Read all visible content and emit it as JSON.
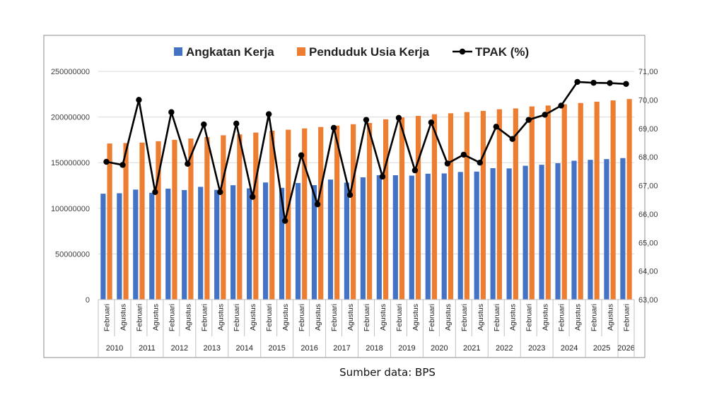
{
  "source_note": "Sumber data: BPS",
  "chart_data": {
    "type": "bar",
    "legend_position": "top",
    "grid": true,
    "categories": [
      "Februari",
      "Agustus",
      "Februari",
      "Agustus",
      "Februari",
      "Agustus",
      "Februari",
      "Agustus",
      "Februari",
      "Agustus",
      "Februari",
      "Agustus",
      "Februari",
      "Agustus",
      "Februari",
      "Agustus",
      "Februari",
      "Agustus",
      "Februari",
      "Agustus",
      "Februari",
      "Agustus",
      "Februari",
      "Agustus",
      "Februari",
      "Agustus",
      "Februari",
      "Agustus",
      "Februari",
      "Agustus",
      "Februari",
      "Agustus",
      "Februari"
    ],
    "years": [
      {
        "label": "2010",
        "count": 2
      },
      {
        "label": "2011",
        "count": 2
      },
      {
        "label": "2012",
        "count": 2
      },
      {
        "label": "2013",
        "count": 2
      },
      {
        "label": "2014",
        "count": 2
      },
      {
        "label": "2015",
        "count": 2
      },
      {
        "label": "2016",
        "count": 2
      },
      {
        "label": "2017",
        "count": 2
      },
      {
        "label": "2018",
        "count": 2
      },
      {
        "label": "2019",
        "count": 2
      },
      {
        "label": "2020",
        "count": 2
      },
      {
        "label": "2021",
        "count": 2
      },
      {
        "label": "2022",
        "count": 2
      },
      {
        "label": "2023",
        "count": 2
      },
      {
        "label": "2024",
        "count": 2
      },
      {
        "label": "2025",
        "count": 2
      },
      {
        "label": "2026",
        "count": 1
      }
    ],
    "series": [
      {
        "name": "Angkatan Kerja",
        "type": "bar",
        "color": "#4472C4",
        "axis": "left",
        "values": [
          116000000,
          116500000,
          120500000,
          117000000,
          121500000,
          120000000,
          123500000,
          120200000,
          125300000,
          121900000,
          128300000,
          122400000,
          127700000,
          125400000,
          131500000,
          128100000,
          133900000,
          136300000,
          136200000,
          135800000,
          137900000,
          138200000,
          139800000,
          140200000,
          144000000,
          143700000,
          146600000,
          147700000,
          149400000,
          152100000,
          153100000,
          153900000,
          155000000
        ]
      },
      {
        "name": "Penduduk Usia Kerja",
        "type": "bar",
        "color": "#ED7D31",
        "axis": "left",
        "values": [
          171000000,
          171500000,
          172000000,
          173500000,
          175000000,
          176500000,
          178000000,
          180000000,
          181000000,
          183000000,
          185000000,
          186100000,
          187500000,
          189100000,
          190600000,
          192100000,
          193500000,
          197500000,
          199500000,
          201200000,
          203000000,
          204100000,
          205400000,
          206700000,
          208500000,
          209400000,
          211600000,
          212600000,
          214000000,
          215400000,
          216800000,
          218200000,
          219700000
        ]
      },
      {
        "name": "TPAK (%)",
        "type": "line",
        "color": "#000000",
        "axis": "right",
        "values": [
          67.83,
          67.72,
          70.0,
          66.77,
          69.57,
          67.76,
          69.14,
          66.77,
          69.17,
          66.6,
          69.5,
          65.76,
          68.06,
          66.34,
          69.02,
          66.67,
          69.3,
          67.31,
          69.37,
          67.53,
          69.21,
          67.77,
          68.08,
          67.8,
          69.06,
          68.63,
          69.3,
          69.48,
          69.8,
          70.63,
          70.6,
          70.59,
          70.56
        ]
      }
    ],
    "y_left": {
      "ylim": [
        0,
        250000000
      ],
      "ticks": [
        "0",
        "50000000",
        "100000000",
        "150000000",
        "200000000",
        "250000000"
      ]
    },
    "y_right": {
      "ylim": [
        63,
        71
      ],
      "ticks": [
        "63,00",
        "64,00",
        "65,00",
        "66,00",
        "67,00",
        "68,00",
        "69,00",
        "70,00",
        "71,00"
      ]
    }
  }
}
